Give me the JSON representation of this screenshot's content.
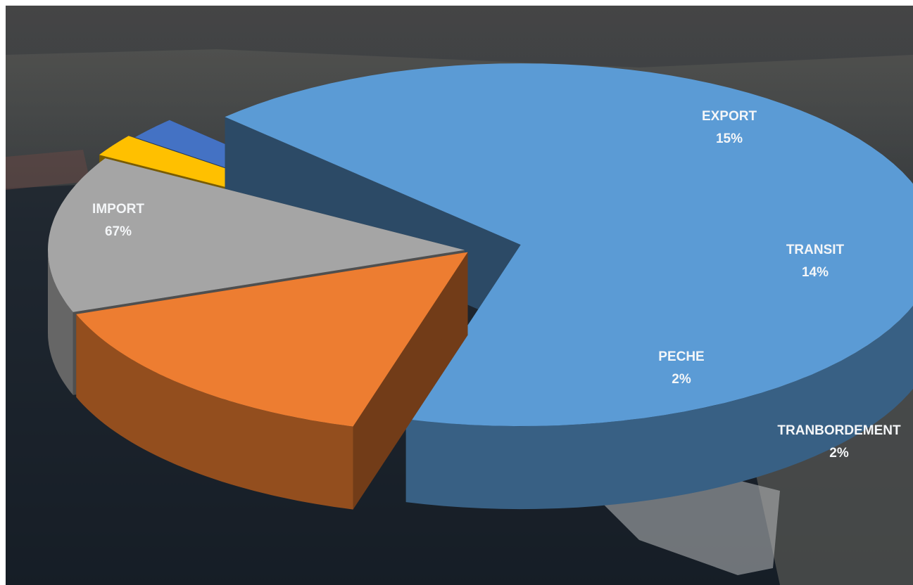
{
  "chart_data": {
    "type": "pie",
    "style": "3d-exploded",
    "title": "",
    "categories": [
      "IMPORT",
      "EXPORT",
      "TRANSIT",
      "TRANBORDEMENT",
      "PECHE"
    ],
    "values": [
      67,
      15,
      14,
      2,
      2
    ],
    "value_labels": [
      "67%",
      "15%",
      "14%",
      "2%",
      "2%"
    ],
    "unit": "%",
    "legend": "none",
    "colors": {
      "IMPORT": "#5b9bd5",
      "EXPORT": "#ed7d31",
      "TRANSIT": "#a5a5a5",
      "TRANBORDEMENT": "#ffc000",
      "PECHE": "#4472c4"
    },
    "background": "dark photo of a port with a docked ship"
  }
}
